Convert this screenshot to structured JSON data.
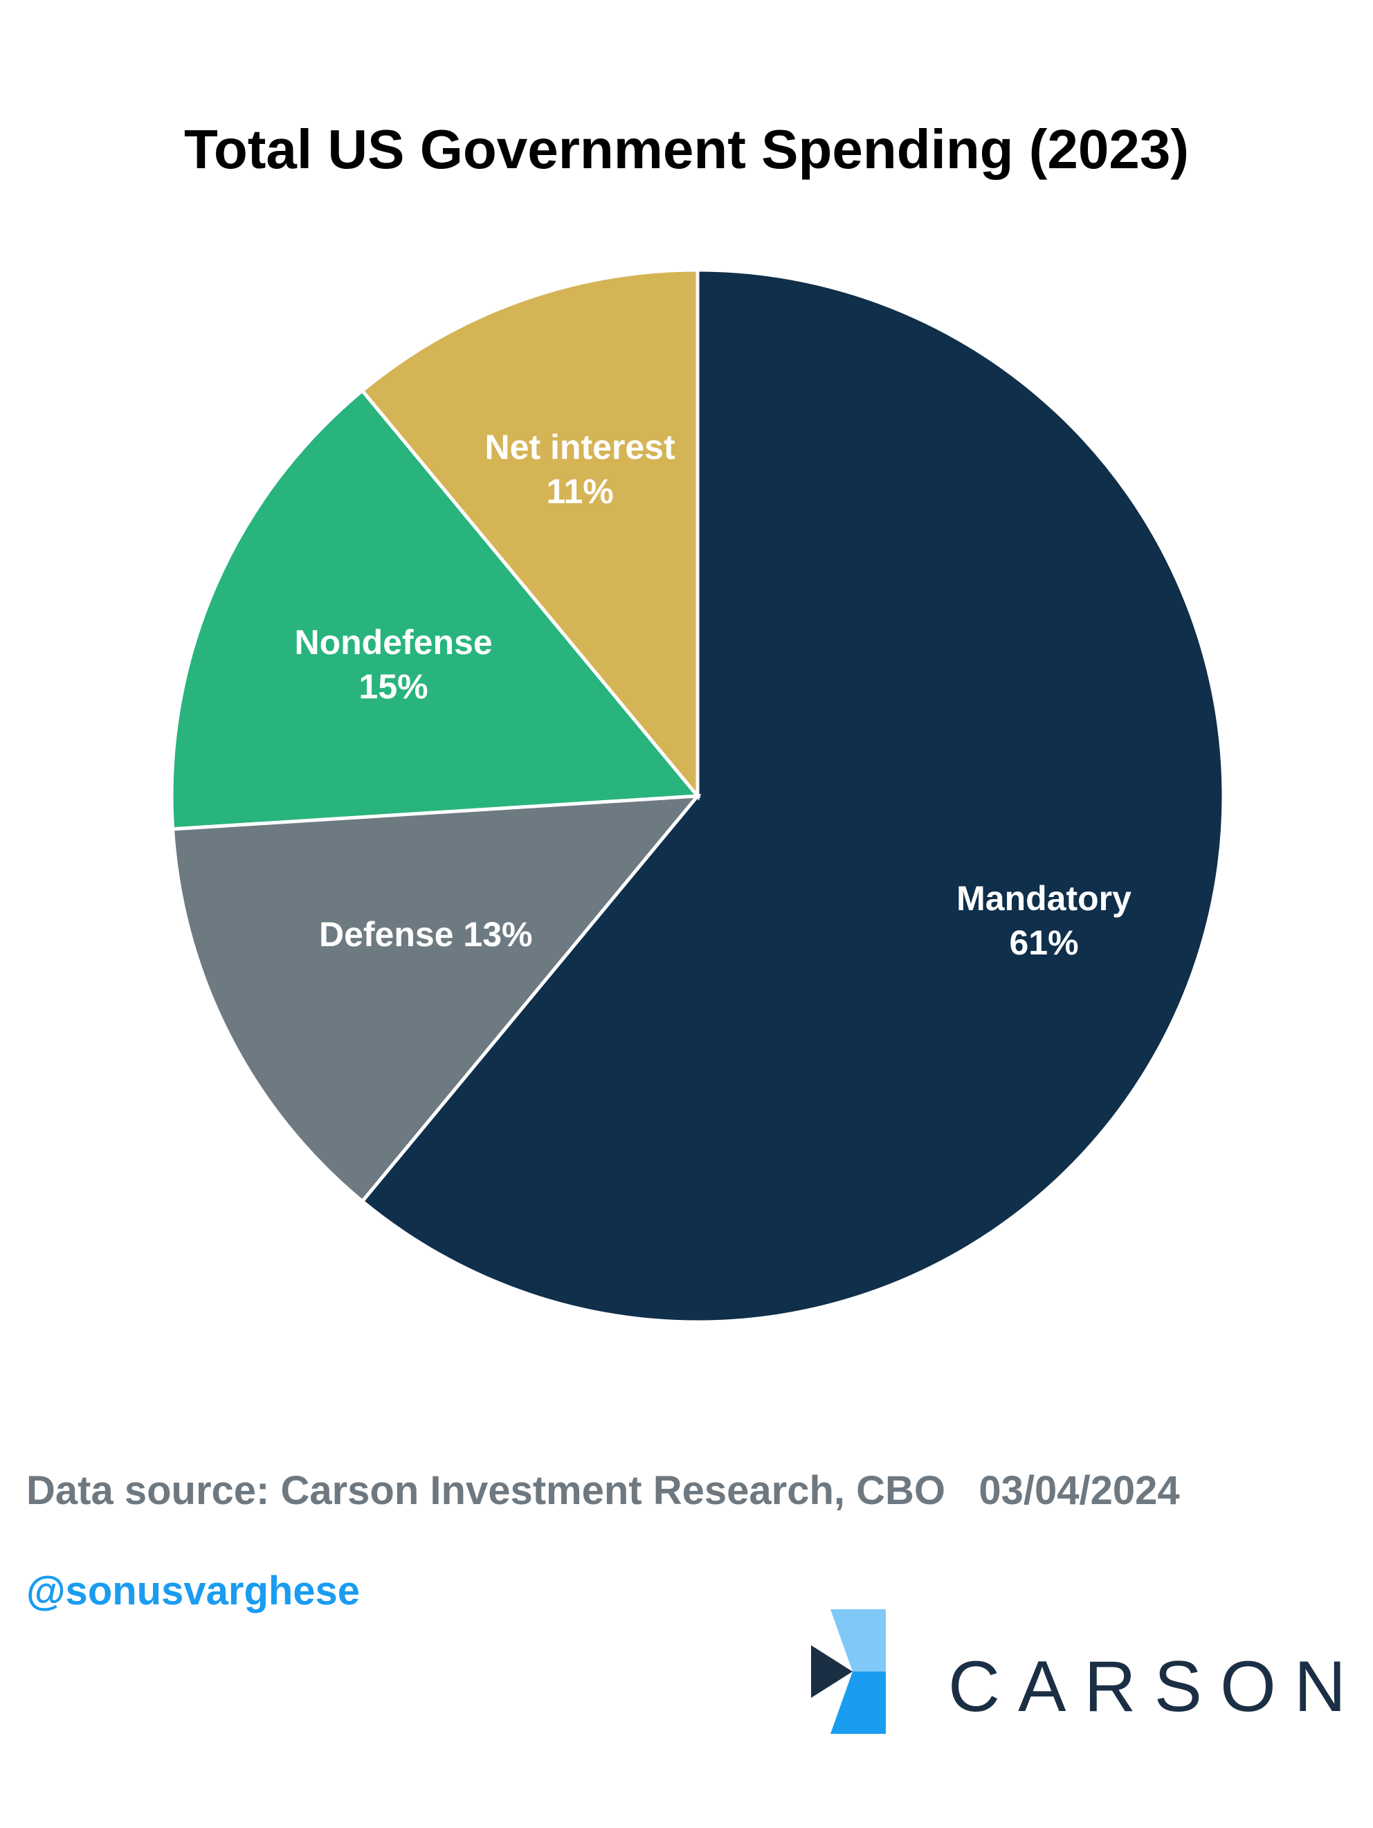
{
  "chart_data": {
    "type": "pie",
    "title": "Total US Government Spending (2023)",
    "slices": [
      {
        "name": "Mandatory",
        "value": 61,
        "label_lines": [
          "Mandatory",
          "61%"
        ],
        "color": "#0f2f4b"
      },
      {
        "name": "Defense",
        "value": 13,
        "label_lines": [
          "Defense 13%"
        ],
        "color": "#6e7a82"
      },
      {
        "name": "Nondefense",
        "value": 15,
        "label_lines": [
          "Nondefense",
          "15%"
        ],
        "color": "#28b47c"
      },
      {
        "name": "Net interest",
        "value": 11,
        "label_lines": [
          "Net interest",
          "11%"
        ],
        "color": "#d5b456"
      }
    ]
  },
  "footer": {
    "source": "Data source: Carson Investment Research, CBO   03/04/2024",
    "handle": "@sonusvarghese"
  },
  "logo": {
    "text": "CARSON",
    "colors": {
      "light": "#7fc8f8",
      "dark": "#1b2f44",
      "blue": "#1a9cf0"
    }
  }
}
